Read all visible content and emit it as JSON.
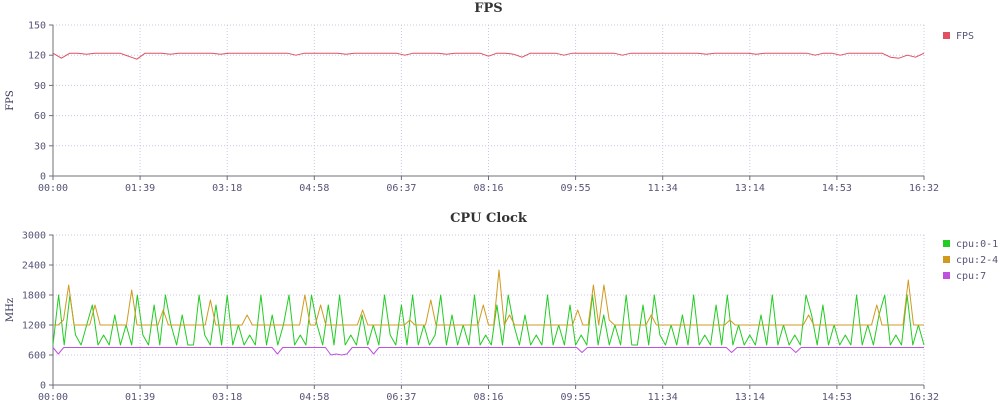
{
  "chart_data": [
    {
      "type": "line",
      "title": "FPS",
      "ylabel": "FPS",
      "xlabel": "",
      "ylim": [
        0,
        150
      ],
      "yticks": [
        0,
        30,
        60,
        90,
        120,
        150
      ],
      "xtick_labels": [
        "00:00",
        "01:39",
        "03:18",
        "04:58",
        "06:37",
        "08:16",
        "09:55",
        "11:34",
        "13:14",
        "14:53",
        "16:32"
      ],
      "grid": true,
      "legend_position": "right",
      "series": [
        {
          "name": "FPS",
          "color": "#e05060",
          "baseline": 122,
          "values": [
            122,
            117,
            122,
            122,
            121,
            122,
            122,
            122,
            122,
            119,
            116,
            122,
            122,
            122,
            121,
            122,
            122,
            122,
            122,
            122,
            121,
            122,
            122,
            122,
            122,
            122,
            122,
            122,
            122,
            120,
            122,
            122,
            122,
            122,
            122,
            121,
            122,
            122,
            122,
            122,
            122,
            122,
            120,
            122,
            122,
            122,
            122,
            121,
            122,
            122,
            122,
            122,
            119,
            122,
            122,
            121,
            118,
            122,
            122,
            122,
            122,
            120,
            122,
            122,
            122,
            122,
            122,
            122,
            120,
            122,
            122,
            122,
            122,
            122,
            122,
            122,
            122,
            122,
            121,
            122,
            122,
            122,
            122,
            122,
            121,
            122,
            122,
            122,
            122,
            122,
            122,
            120,
            122,
            122,
            120,
            122,
            122,
            122,
            122,
            122,
            118,
            117,
            120,
            118,
            122
          ]
        }
      ]
    },
    {
      "type": "line",
      "title": "CPU Clock",
      "ylabel": "MHz",
      "xlabel": "",
      "ylim": [
        0,
        3000
      ],
      "yticks": [
        0,
        600,
        1200,
        1800,
        2400,
        3000
      ],
      "xtick_labels": [
        "00:00",
        "01:39",
        "03:18",
        "04:58",
        "06:37",
        "08:16",
        "09:55",
        "11:34",
        "13:14",
        "14:53",
        "16:32"
      ],
      "grid": true,
      "legend_position": "right",
      "series": [
        {
          "name": "cpu:0-1",
          "color": "#22cc22",
          "values": [
            800,
            1800,
            800,
            1800,
            1000,
            800,
            1200,
            1600,
            800,
            1000,
            800,
            1400,
            800,
            1200,
            800,
            1800,
            1000,
            800,
            1600,
            800,
            1800,
            1200,
            800,
            1400,
            800,
            800,
            1800,
            1000,
            800,
            1600,
            800,
            1800,
            800,
            1200,
            800,
            1000,
            800,
            1800,
            800,
            1400,
            800,
            1200,
            1800,
            800,
            1000,
            800,
            1800,
            1200,
            800,
            1600,
            800,
            1800,
            800,
            1000,
            800,
            1400,
            800,
            1200,
            800,
            1800,
            1000,
            800,
            1600,
            800,
            1800,
            800,
            1200,
            800,
            1000,
            1800,
            800,
            1400,
            800,
            1200,
            800,
            1800,
            800,
            1000,
            800,
            1600,
            800,
            1800,
            1200,
            800,
            1400,
            800,
            1000,
            800,
            1800,
            800,
            1200,
            800,
            1600,
            800,
            1000,
            800,
            1800,
            800,
            1400,
            800,
            1200,
            800,
            1800,
            800,
            800,
            1600,
            800,
            1800,
            1000,
            800,
            1200,
            800,
            1400,
            800,
            1800,
            800,
            1000,
            800,
            1600,
            800,
            1800,
            800,
            1200,
            800,
            1000,
            800,
            1400,
            800,
            1800,
            800,
            1200,
            800,
            1000,
            800,
            1800,
            1400,
            800,
            1600,
            800,
            1200,
            800,
            1000,
            800,
            1800,
            800,
            1200,
            800,
            1400,
            1800,
            800,
            1000,
            800,
            1800,
            800,
            1200,
            800
          ]
        },
        {
          "name": "cpu:2-4",
          "color": "#d09a20",
          "values": [
            1200,
            1200,
            1300,
            2000,
            1200,
            1200,
            1200,
            1200,
            1600,
            1200,
            1200,
            1200,
            1200,
            1200,
            1200,
            1900,
            1200,
            1200,
            1200,
            1200,
            1200,
            1500,
            1200,
            1200,
            1200,
            1200,
            1200,
            1200,
            1200,
            1200,
            1700,
            1200,
            1200,
            1200,
            1200,
            1200,
            1200,
            1400,
            1200,
            1200,
            1200,
            1200,
            1200,
            1200,
            1200,
            1200,
            1200,
            1200,
            1800,
            1200,
            1200,
            1600,
            1200,
            1200,
            1200,
            1200,
            1200,
            1200,
            1200,
            1500,
            1200,
            1200,
            1200,
            1200,
            1200,
            1200,
            1200,
            1200,
            1300,
            1200,
            1200,
            1200,
            1700,
            1200,
            1200,
            1200,
            1200,
            1200,
            1200,
            1200,
            1200,
            1200,
            1600,
            1200,
            1200,
            2300,
            1200,
            1400,
            1200,
            1200,
            1200,
            1200,
            1200,
            1200,
            1200,
            1200,
            1200,
            1200,
            1200,
            1200,
            1500,
            1200,
            1200,
            2000,
            1200,
            2000,
            1300,
            1200,
            1200,
            1200,
            1200,
            1200,
            1200,
            1200,
            1400,
            1200,
            1200,
            1200,
            1200,
            1200,
            1200,
            1200,
            1200,
            1200,
            1200,
            1200,
            1200,
            1200,
            1200,
            1300,
            1200,
            1200,
            1200,
            1200,
            1200,
            1200,
            1200,
            1200,
            1200,
            1200,
            1200,
            1200,
            1200,
            1200,
            1400,
            1200,
            1200,
            1200,
            1200,
            1200,
            1200,
            1200,
            1200,
            1200,
            1200,
            1200,
            1200,
            1600,
            1200,
            1200,
            1200,
            1200,
            1200,
            2100,
            1200,
            1200,
            1200
          ]
        },
        {
          "name": "cpu:7",
          "color": "#c050e0",
          "values": [
            750,
            620,
            750,
            750,
            750,
            750,
            750,
            750,
            750,
            750,
            750,
            750,
            750,
            750,
            750,
            750,
            750,
            750,
            750,
            750,
            750,
            750,
            750,
            750,
            750,
            750,
            750,
            750,
            750,
            750,
            750,
            750,
            750,
            750,
            750,
            750,
            750,
            750,
            750,
            750,
            750,
            750,
            620,
            750,
            750,
            750,
            750,
            750,
            750,
            750,
            750,
            750,
            600,
            620,
            600,
            620,
            750,
            750,
            750,
            750,
            620,
            750,
            750,
            750,
            750,
            750,
            750,
            750,
            750,
            750,
            750,
            750,
            750,
            750,
            750,
            750,
            750,
            750,
            750,
            750,
            750,
            750,
            750,
            750,
            750,
            750,
            750,
            750,
            750,
            750,
            750,
            750,
            750,
            750,
            750,
            750,
            750,
            750,
            750,
            650,
            750,
            750,
            750,
            750,
            750,
            750,
            750,
            750,
            750,
            750,
            750,
            750,
            750,
            750,
            750,
            750,
            750,
            750,
            750,
            750,
            750,
            750,
            750,
            750,
            750,
            750,
            750,
            650,
            750,
            750,
            750,
            750,
            750,
            750,
            750,
            750,
            750,
            750,
            750,
            650,
            750,
            750,
            750,
            750,
            750,
            750,
            750,
            750,
            750,
            750,
            750,
            750,
            750,
            750,
            750,
            750,
            750,
            750,
            750,
            750,
            750,
            750,
            750,
            750
          ]
        }
      ]
    }
  ]
}
